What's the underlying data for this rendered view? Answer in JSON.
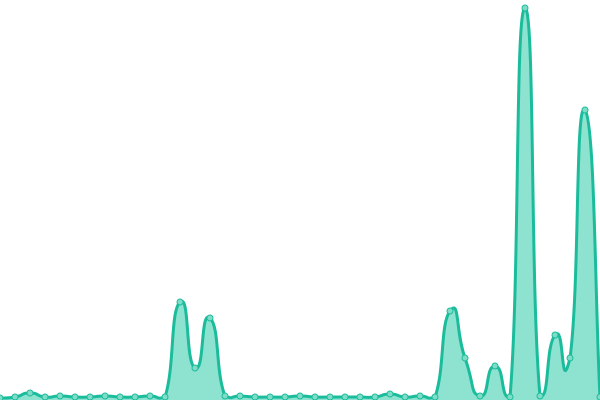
{
  "chart_data": {
    "type": "area",
    "title": "",
    "xlabel": "",
    "ylabel": "",
    "x": [
      0,
      1,
      2,
      3,
      4,
      5,
      6,
      7,
      8,
      9,
      10,
      11,
      12,
      13,
      14,
      15,
      16,
      17,
      18,
      19,
      20,
      21,
      22,
      23,
      24,
      25,
      26,
      27,
      28,
      29,
      30,
      31,
      32,
      33,
      34,
      35,
      36,
      37,
      38,
      39,
      40
    ],
    "values": [
      2,
      3,
      7,
      3,
      4,
      3,
      3,
      4,
      3,
      3,
      4,
      3,
      98,
      32,
      82,
      4,
      4,
      3,
      3,
      3,
      4,
      3,
      3,
      3,
      3,
      3,
      6,
      3,
      4,
      3,
      89,
      42,
      4,
      34,
      3,
      392,
      4,
      65,
      42,
      290,
      3
    ],
    "ylim": [
      0,
      400
    ],
    "grid": false,
    "axes_visible": false,
    "smooth": true,
    "colors": {
      "line": "#1abc9c",
      "fill": "#8ee2d0",
      "point": "#7fdcc6"
    }
  }
}
